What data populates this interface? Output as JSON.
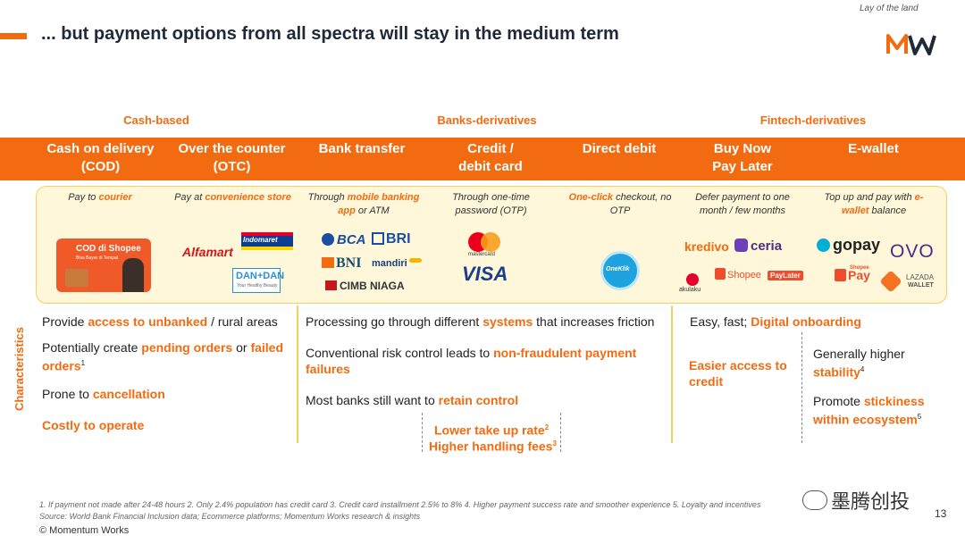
{
  "header": {
    "title": "... but payment options from all spectra will stay in the medium term",
    "tagline": "Lay of the land",
    "logo_text": "MW"
  },
  "groups": [
    "Cash-based",
    "Banks-derivatives",
    "Fintech-derivatives"
  ],
  "columns": [
    {
      "head": "Cash on delivery\n(COD)",
      "desc_pre": "Pay to ",
      "desc_hl": "courier",
      "desc_post": ""
    },
    {
      "head": "Over the counter\n(OTC)",
      "desc_pre": "Pay at ",
      "desc_hl": "convenience store",
      "desc_post": ""
    },
    {
      "head": "Bank transfer",
      "desc_pre": "Through ",
      "desc_hl": "mobile banking app",
      "desc_post": " or ATM"
    },
    {
      "head": "Credit /\ndebit card",
      "desc_pre": "Through one-time password (OTP)",
      "desc_hl": "",
      "desc_post": ""
    },
    {
      "head": "Direct debit",
      "desc_pre": "",
      "desc_hl": "One-click",
      "desc_post": " checkout, no OTP"
    },
    {
      "head": "Buy Now\nPay Later",
      "desc_pre": "Defer payment to one month / few months",
      "desc_hl": "",
      "desc_post": ""
    },
    {
      "head": "E-wallet",
      "desc_pre": "Top up and pay with ",
      "desc_hl": "e-wallet",
      "desc_post": " balance"
    }
  ],
  "brands": {
    "cod_card": "COD di Shopee",
    "cod_sub": "Bisa Bayar di Tempat",
    "alfamart": "Alfamart",
    "indomaret": "Indomaret",
    "dandan": "DAN+DAN",
    "dandan_sub": "Your Healthy Beauty",
    "bca": "BCA",
    "bri": "BRI",
    "bni": "BNI",
    "mandiri": "mandiri",
    "cimb": "CIMB NIAGA",
    "mastercard": "mastercard",
    "visa": "VISA",
    "oneklik": "OneKlik",
    "kredivo": "kredivo",
    "ceria": "ceria",
    "akulaku": "akulaku",
    "shopee_paylater": "Shopee",
    "paylater": "PayLater",
    "gopay": "gopay",
    "ovo": "OVO",
    "shopeepay": "Pay",
    "shopeepay_small": "Shopee",
    "lazada": "LAZADA",
    "lazada_sub": "WALLET"
  },
  "characteristics_label": "Characteristics",
  "cash": {
    "l1_pre": "Provide ",
    "l1_hl": "access to unbanked",
    "l1_post": " / rural areas",
    "l2_pre": "Potentially create ",
    "l2_hl1": "pending orders",
    "l2_mid": " or ",
    "l2_hl2": "failed orders",
    "l2_sup": "1",
    "l3_pre": "Prone to ",
    "l3_hl": "cancellation",
    "l4_hl": "Costly to operate"
  },
  "banks": {
    "l1_pre": "Processing go through different ",
    "l1_hl": "systems",
    "l1_post": " that increases friction",
    "l2_pre": "Conventional risk control leads to ",
    "l2_hl": "non-fraudulent payment failures",
    "l3_pre": "Most banks still want to ",
    "l3_hl": "retain control",
    "l4_hl": "Lower take up rate",
    "l4_sup": "2",
    "l5_hl": "Higher handling fees",
    "l5_sup": "3"
  },
  "fintech": {
    "l1_pre": "Easy, fast; ",
    "l1_hl": "Digital onboarding",
    "l2_hl": "Easier access to credit",
    "l3_pre": "Generally higher ",
    "l3_hl": "stability",
    "l3_sup": "4",
    "l4_pre": "Promote ",
    "l4_hl": "stickiness within ecosystem",
    "l4_sup": "5"
  },
  "footnotes": {
    "line1": "1. If payment not made after 24-48 hours    2. Only 2.4% population has credit card    3. Credit card installment 2.5% to 8%    4. Higher payment success rate and smoother experience    5. Loyalty and incentives",
    "line2": "Source: World Bank Financial Inclusion data; Ecommerce platforms; Momentum Works research & insights",
    "copyright": "© Momentum Works",
    "page": "13",
    "watermark": "墨腾创投"
  },
  "colors": {
    "accent": "#f26b10",
    "panel_bg": "#fff7d9",
    "panel_border": "#f6cf5e",
    "title": "#1e2a3a"
  }
}
